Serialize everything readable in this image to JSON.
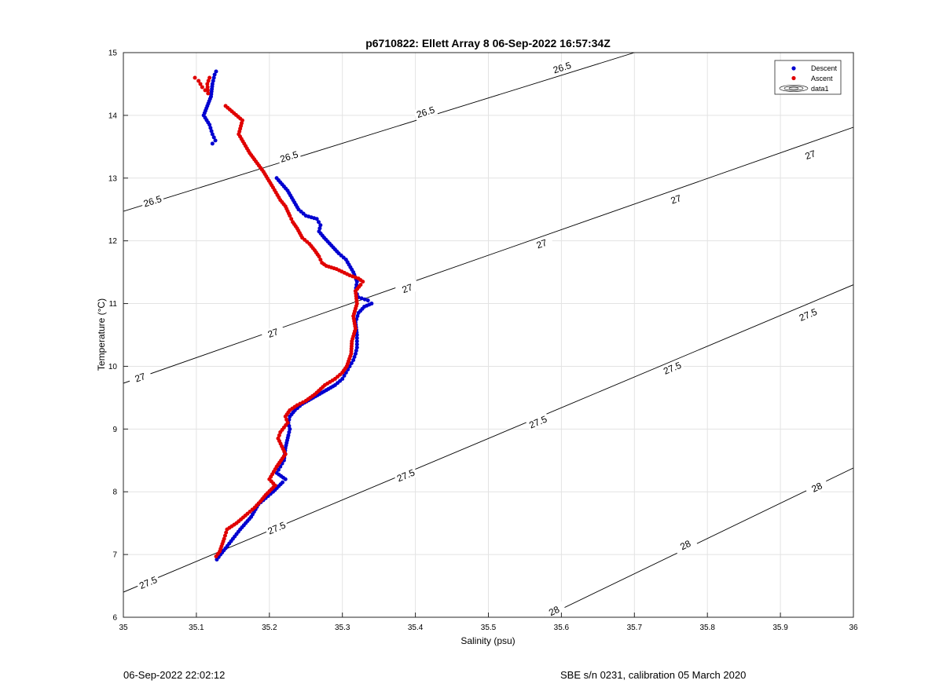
{
  "chart_data": {
    "type": "scatter",
    "title": "p6710822: Ellett Array 8 06-Sep-2022 16:57:34Z",
    "xlabel": "Salinity (psu)",
    "ylabel": "Temperature (°C)",
    "xlim": [
      35,
      36
    ],
    "ylim": [
      6,
      15
    ],
    "grid": true,
    "legend_position": "top-right",
    "xticks": [
      "35",
      "35.1",
      "35.2",
      "35.3",
      "35.4",
      "35.5",
      "35.6",
      "35.7",
      "35.8",
      "35.9",
      "36"
    ],
    "yticks": [
      "6",
      "7",
      "8",
      "9",
      "10",
      "11",
      "12",
      "13",
      "14",
      "15"
    ],
    "legend": [
      {
        "label": "Descent",
        "color": "#0000d0"
      },
      {
        "label": "Ascent",
        "color": "#e00000"
      },
      {
        "label": "data1",
        "color": "#000000"
      }
    ],
    "series": [
      {
        "name": "Descent",
        "color": "#0000d0",
        "x": [
          35.127,
          35.125,
          35.122,
          35.12,
          35.115,
          35.11,
          35.118,
          35.122,
          35.126,
          35.122,
          35.21,
          35.225,
          35.24,
          35.25,
          35.265,
          35.27,
          35.268,
          35.275,
          35.295,
          35.305,
          35.315,
          35.32,
          35.318,
          35.322,
          35.335,
          35.34,
          35.33,
          35.322,
          35.318,
          35.32,
          35.32,
          35.318,
          35.315,
          35.31,
          35.305,
          35.3,
          35.29,
          35.275,
          35.26,
          35.245,
          35.235,
          35.228,
          35.226,
          35.228,
          35.226,
          35.222,
          35.22,
          35.215,
          35.21,
          35.222,
          35.218,
          35.205,
          35.195,
          35.185,
          35.175,
          35.16,
          35.15,
          35.14,
          35.133,
          35.128
        ],
        "y": [
          14.7,
          14.65,
          14.5,
          14.3,
          14.15,
          14.0,
          13.85,
          13.7,
          13.6,
          13.55,
          13.0,
          12.8,
          12.5,
          12.4,
          12.35,
          12.25,
          12.15,
          12.05,
          11.8,
          11.7,
          11.5,
          11.35,
          11.2,
          11.1,
          11.05,
          11.0,
          10.95,
          10.85,
          10.7,
          10.5,
          10.3,
          10.2,
          10.1,
          10.0,
          9.9,
          9.8,
          9.7,
          9.6,
          9.5,
          9.4,
          9.3,
          9.2,
          9.1,
          9.0,
          8.9,
          8.7,
          8.5,
          8.4,
          8.3,
          8.2,
          8.15,
          8.0,
          7.9,
          7.8,
          7.6,
          7.4,
          7.25,
          7.1,
          7.0,
          6.92
        ]
      },
      {
        "name": "Ascent",
        "color": "#e00000",
        "x": [
          35.098,
          35.103,
          35.108,
          35.112,
          35.116,
          35.115,
          35.118,
          35.14,
          35.163,
          35.158,
          35.173,
          35.192,
          35.205,
          35.215,
          35.222,
          35.228,
          35.232,
          35.238,
          35.245,
          35.255,
          35.262,
          35.268,
          35.272,
          35.278,
          35.292,
          35.31,
          35.322,
          35.328,
          35.325,
          35.318,
          35.32,
          35.315,
          35.318,
          35.313,
          35.312,
          35.306,
          35.3,
          35.29,
          35.276,
          35.262,
          35.25,
          35.238,
          35.228,
          35.222,
          35.225,
          35.215,
          35.212,
          35.222,
          35.21,
          35.2,
          35.208,
          35.195,
          35.188,
          35.18,
          35.17,
          35.155,
          35.142,
          35.138,
          35.132,
          35.127
        ],
        "y": [
          14.6,
          14.55,
          14.45,
          14.4,
          14.35,
          14.5,
          14.6,
          14.15,
          13.92,
          13.7,
          13.4,
          13.1,
          12.85,
          12.65,
          12.55,
          12.4,
          12.3,
          12.2,
          12.05,
          11.95,
          11.85,
          11.75,
          11.65,
          11.6,
          11.55,
          11.45,
          11.4,
          11.35,
          11.3,
          11.2,
          11.0,
          10.8,
          10.6,
          10.4,
          10.2,
          10.0,
          9.9,
          9.8,
          9.7,
          9.55,
          9.45,
          9.38,
          9.3,
          9.2,
          9.1,
          8.95,
          8.85,
          8.6,
          8.4,
          8.2,
          8.1,
          7.95,
          7.85,
          7.75,
          7.65,
          7.5,
          7.4,
          7.25,
          7.05,
          6.97
        ]
      }
    ],
    "isopycnals": [
      {
        "label": "26.5",
        "x": [
          35,
          35.7
        ],
        "y": [
          12.47,
          15.0
        ]
      },
      {
        "label": "27",
        "x": [
          35,
          36
        ],
        "y": [
          9.73,
          13.81
        ]
      },
      {
        "label": "27.5",
        "x": [
          35,
          36
        ],
        "y": [
          6.4,
          11.3
        ]
      },
      {
        "label": "28",
        "x": [
          35.55,
          36
        ],
        "y": [
          5.85,
          8.38
        ]
      }
    ],
    "contour_labels": [
      {
        "text": "26.5",
        "x": 35.04,
        "y": 12.63
      },
      {
        "text": "26.5",
        "x": 35.227,
        "y": 13.34
      },
      {
        "text": "26.5",
        "x": 35.414,
        "y": 14.05
      },
      {
        "text": "26.5",
        "x": 35.601,
        "y": 14.76
      },
      {
        "text": "27",
        "x": 35.023,
        "y": 9.82
      },
      {
        "text": "27",
        "x": 35.205,
        "y": 10.53
      },
      {
        "text": "27",
        "x": 35.389,
        "y": 11.24
      },
      {
        "text": "27",
        "x": 35.573,
        "y": 11.95
      },
      {
        "text": "27",
        "x": 35.757,
        "y": 12.66
      },
      {
        "text": "27",
        "x": 35.941,
        "y": 13.37
      },
      {
        "text": "27.5",
        "x": 35.034,
        "y": 6.55
      },
      {
        "text": "27.5",
        "x": 35.21,
        "y": 7.42
      },
      {
        "text": "27.5",
        "x": 35.387,
        "y": 8.26
      },
      {
        "text": "27.5",
        "x": 35.568,
        "y": 9.11
      },
      {
        "text": "27.5",
        "x": 35.752,
        "y": 9.97
      },
      {
        "text": "27.5",
        "x": 35.938,
        "y": 10.82
      },
      {
        "text": "28",
        "x": 35.59,
        "y": 6.1
      },
      {
        "text": "28",
        "x": 35.77,
        "y": 7.15
      },
      {
        "text": "28",
        "x": 35.95,
        "y": 8.07
      }
    ]
  },
  "footer": {
    "left_text": "06-Sep-2022 22:02:12",
    "right_text": "SBE s/n 0231, calibration 05 March 2020"
  }
}
